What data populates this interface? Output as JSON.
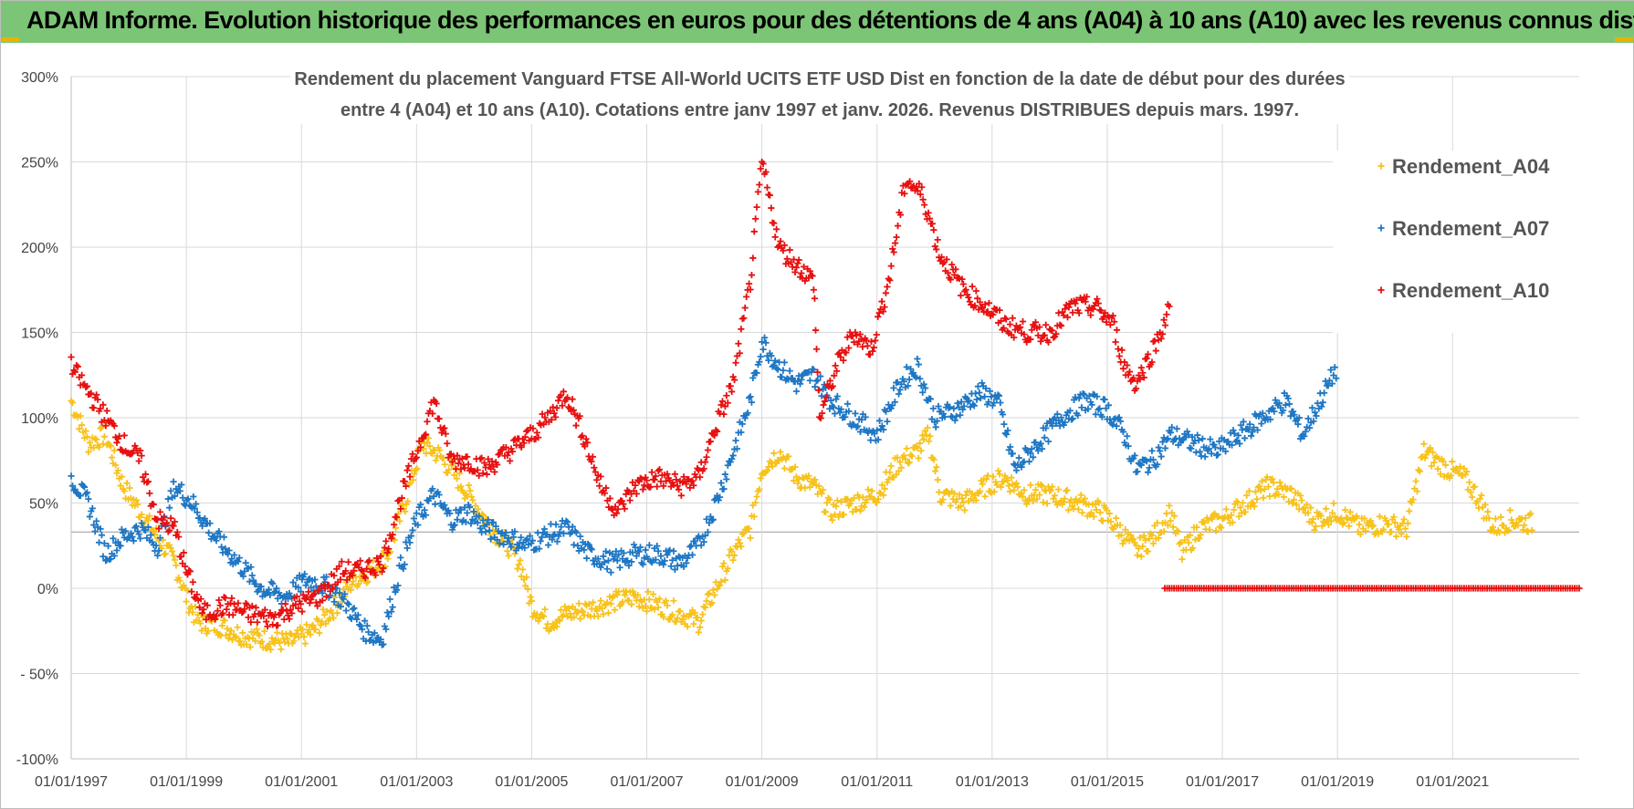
{
  "header": {
    "title": "ADAM Informe. Evolution historique des performances en euros pour des détentions de 4 ans (A04) à 10 ans (A10) avec les revenus connus distribués"
  },
  "chart_data": {
    "type": "scatter",
    "subtitle_line1": "Rendement du placement Vanguard FTSE All-World UCITS ETF USD Dist en fonction de la date de début pour des durées",
    "subtitle_line2": "entre 4 (A04) et 10 ans (A10).  Cotations entre janv 1997 et janv. 2026. Revenus DISTRIBUES depuis mars. 1997.",
    "x_ticks": [
      "01/01/1997",
      "01/01/1999",
      "01/01/2001",
      "01/01/2003",
      "01/01/2005",
      "01/01/2007",
      "01/01/2009",
      "01/01/2011",
      "01/01/2013",
      "01/01/2015",
      "01/01/2017",
      "01/01/2019",
      "01/01/2021"
    ],
    "y_ticks": [
      "300%",
      "250%",
      "200%",
      "150%",
      "100%",
      "50%",
      "0%",
      "- 50%",
      "-100%"
    ],
    "xlim": [
      1997.0,
      2023.2
    ],
    "ylim": [
      -100,
      300
    ],
    "grid": true,
    "legend_position": "top-right",
    "series": [
      {
        "name": "Rendement_A04",
        "color": "#f7c21b",
        "points": [
          [
            1997.0,
            110
          ],
          [
            1997.3,
            85
          ],
          [
            1997.6,
            90
          ],
          [
            1997.9,
            60
          ],
          [
            1998.2,
            45
          ],
          [
            1998.5,
            30
          ],
          [
            1998.8,
            15
          ],
          [
            1999.0,
            -5
          ],
          [
            1999.2,
            -20
          ],
          [
            1999.6,
            -22
          ],
          [
            2000.0,
            -28
          ],
          [
            2000.4,
            -30
          ],
          [
            2000.8,
            -32
          ],
          [
            2001.2,
            -25
          ],
          [
            2001.6,
            -10
          ],
          [
            2001.9,
            5
          ],
          [
            2002.2,
            10
          ],
          [
            2002.5,
            20
          ],
          [
            2002.8,
            50
          ],
          [
            2003.1,
            85
          ],
          [
            2003.4,
            78
          ],
          [
            2003.7,
            65
          ],
          [
            2004.0,
            50
          ],
          [
            2004.3,
            35
          ],
          [
            2004.6,
            25
          ],
          [
            2004.8,
            15
          ],
          [
            2005.0,
            -10
          ],
          [
            2005.3,
            -20
          ],
          [
            2005.6,
            -15
          ],
          [
            2006.0,
            -12
          ],
          [
            2006.4,
            -8
          ],
          [
            2006.8,
            -5
          ],
          [
            2007.2,
            -10
          ],
          [
            2007.6,
            -15
          ],
          [
            2007.9,
            -20
          ],
          [
            2008.2,
            0
          ],
          [
            2008.5,
            20
          ],
          [
            2008.8,
            35
          ],
          [
            2009.0,
            70
          ],
          [
            2009.3,
            80
          ],
          [
            2009.6,
            65
          ],
          [
            2009.9,
            60
          ],
          [
            2010.2,
            45
          ],
          [
            2010.6,
            50
          ],
          [
            2011.0,
            55
          ],
          [
            2011.4,
            75
          ],
          [
            2011.7,
            80
          ],
          [
            2011.9,
            90
          ],
          [
            2012.1,
            55
          ],
          [
            2012.5,
            50
          ],
          [
            2012.9,
            60
          ],
          [
            2013.2,
            65
          ],
          [
            2013.6,
            55
          ],
          [
            2014.0,
            55
          ],
          [
            2014.5,
            50
          ],
          [
            2014.9,
            45
          ],
          [
            2015.2,
            35
          ],
          [
            2015.5,
            22
          ],
          [
            2015.8,
            30
          ],
          [
            2016.1,
            45
          ],
          [
            2016.3,
            20
          ],
          [
            2016.6,
            35
          ],
          [
            2017.0,
            40
          ],
          [
            2017.4,
            50
          ],
          [
            2017.8,
            60
          ],
          [
            2018.2,
            55
          ],
          [
            2018.6,
            40
          ],
          [
            2019.0,
            45
          ],
          [
            2019.4,
            35
          ],
          [
            2019.8,
            38
          ],
          [
            2020.2,
            35
          ],
          [
            2020.5,
            80
          ],
          [
            2020.9,
            70
          ],
          [
            2021.2,
            65
          ],
          [
            2021.5,
            50
          ],
          [
            2021.7,
            35
          ],
          [
            2022.0,
            40
          ],
          [
            2022.4,
            38
          ]
        ]
      },
      {
        "name": "Rendement_A07",
        "color": "#1f77c4",
        "points": [
          [
            1997.0,
            65
          ],
          [
            1997.3,
            50
          ],
          [
            1997.6,
            20
          ],
          [
            1997.9,
            30
          ],
          [
            1998.2,
            35
          ],
          [
            1998.5,
            25
          ],
          [
            1998.8,
            60
          ],
          [
            1999.1,
            50
          ],
          [
            1999.5,
            30
          ],
          [
            1999.9,
            15
          ],
          [
            2000.3,
            0
          ],
          [
            2000.7,
            -5
          ],
          [
            2001.1,
            5
          ],
          [
            2001.5,
            0
          ],
          [
            2001.8,
            -10
          ],
          [
            2002.1,
            -25
          ],
          [
            2002.4,
            -30
          ],
          [
            2002.7,
            10
          ],
          [
            2003.0,
            40
          ],
          [
            2003.3,
            55
          ],
          [
            2003.6,
            40
          ],
          [
            2003.9,
            45
          ],
          [
            2004.2,
            35
          ],
          [
            2004.6,
            30
          ],
          [
            2004.9,
            25
          ],
          [
            2005.2,
            30
          ],
          [
            2005.6,
            35
          ],
          [
            2006.0,
            20
          ],
          [
            2006.4,
            15
          ],
          [
            2006.8,
            20
          ],
          [
            2007.2,
            20
          ],
          [
            2007.6,
            15
          ],
          [
            2007.9,
            25
          ],
          [
            2008.2,
            50
          ],
          [
            2008.5,
            80
          ],
          [
            2008.8,
            110
          ],
          [
            2009.0,
            145
          ],
          [
            2009.3,
            130
          ],
          [
            2009.6,
            120
          ],
          [
            2009.9,
            125
          ],
          [
            2010.2,
            110
          ],
          [
            2010.6,
            100
          ],
          [
            2011.0,
            90
          ],
          [
            2011.4,
            120
          ],
          [
            2011.7,
            130
          ],
          [
            2012.0,
            100
          ],
          [
            2012.4,
            105
          ],
          [
            2012.8,
            115
          ],
          [
            2013.1,
            110
          ],
          [
            2013.4,
            70
          ],
          [
            2013.8,
            85
          ],
          [
            2014.2,
            100
          ],
          [
            2014.6,
            110
          ],
          [
            2015.0,
            105
          ],
          [
            2015.3,
            90
          ],
          [
            2015.5,
            70
          ],
          [
            2015.8,
            75
          ],
          [
            2016.1,
            90
          ],
          [
            2016.5,
            85
          ],
          [
            2016.9,
            80
          ],
          [
            2017.3,
            90
          ],
          [
            2017.7,
            100
          ],
          [
            2018.1,
            110
          ],
          [
            2018.4,
            90
          ],
          [
            2018.7,
            110
          ],
          [
            2019.0,
            130
          ]
        ]
      },
      {
        "name": "Rendement_A10",
        "color": "#e81010",
        "points": [
          [
            1997.0,
            130
          ],
          [
            1997.3,
            115
          ],
          [
            1997.6,
            100
          ],
          [
            1997.9,
            85
          ],
          [
            1998.2,
            75
          ],
          [
            1998.5,
            40
          ],
          [
            1998.8,
            35
          ],
          [
            1999.0,
            10
          ],
          [
            1999.3,
            -15
          ],
          [
            1999.7,
            -10
          ],
          [
            2000.1,
            -15
          ],
          [
            2000.5,
            -18
          ],
          [
            2000.9,
            -10
          ],
          [
            2001.3,
            -5
          ],
          [
            2001.7,
            10
          ],
          [
            2002.0,
            10
          ],
          [
            2002.4,
            15
          ],
          [
            2002.7,
            50
          ],
          [
            2003.0,
            80
          ],
          [
            2003.3,
            110
          ],
          [
            2003.6,
            75
          ],
          [
            2003.9,
            75
          ],
          [
            2004.2,
            70
          ],
          [
            2004.6,
            80
          ],
          [
            2005.0,
            90
          ],
          [
            2005.3,
            100
          ],
          [
            2005.6,
            115
          ],
          [
            2005.9,
            90
          ],
          [
            2006.2,
            60
          ],
          [
            2006.5,
            45
          ],
          [
            2006.8,
            60
          ],
          [
            2007.2,
            65
          ],
          [
            2007.6,
            60
          ],
          [
            2007.9,
            65
          ],
          [
            2008.2,
            95
          ],
          [
            2008.5,
            120
          ],
          [
            2008.8,
            180
          ],
          [
            2009.0,
            250
          ],
          [
            2009.3,
            200
          ],
          [
            2009.6,
            190
          ],
          [
            2009.9,
            180
          ],
          [
            2010.0,
            100
          ],
          [
            2010.3,
            130
          ],
          [
            2010.6,
            150
          ],
          [
            2010.9,
            140
          ],
          [
            2011.2,
            180
          ],
          [
            2011.5,
            240
          ],
          [
            2011.8,
            230
          ],
          [
            2012.1,
            195
          ],
          [
            2012.5,
            175
          ],
          [
            2012.9,
            165
          ],
          [
            2013.2,
            155
          ],
          [
            2013.6,
            150
          ],
          [
            2014.0,
            150
          ],
          [
            2014.4,
            165
          ],
          [
            2014.8,
            165
          ],
          [
            2015.1,
            155
          ],
          [
            2015.3,
            130
          ],
          [
            2015.5,
            120
          ],
          [
            2015.8,
            140
          ],
          [
            2016.1,
            165
          ]
        ]
      },
      {
        "name": "",
        "color": "#e81010",
        "zero_band": [
          2016.0,
          2023.2
        ]
      }
    ]
  }
}
